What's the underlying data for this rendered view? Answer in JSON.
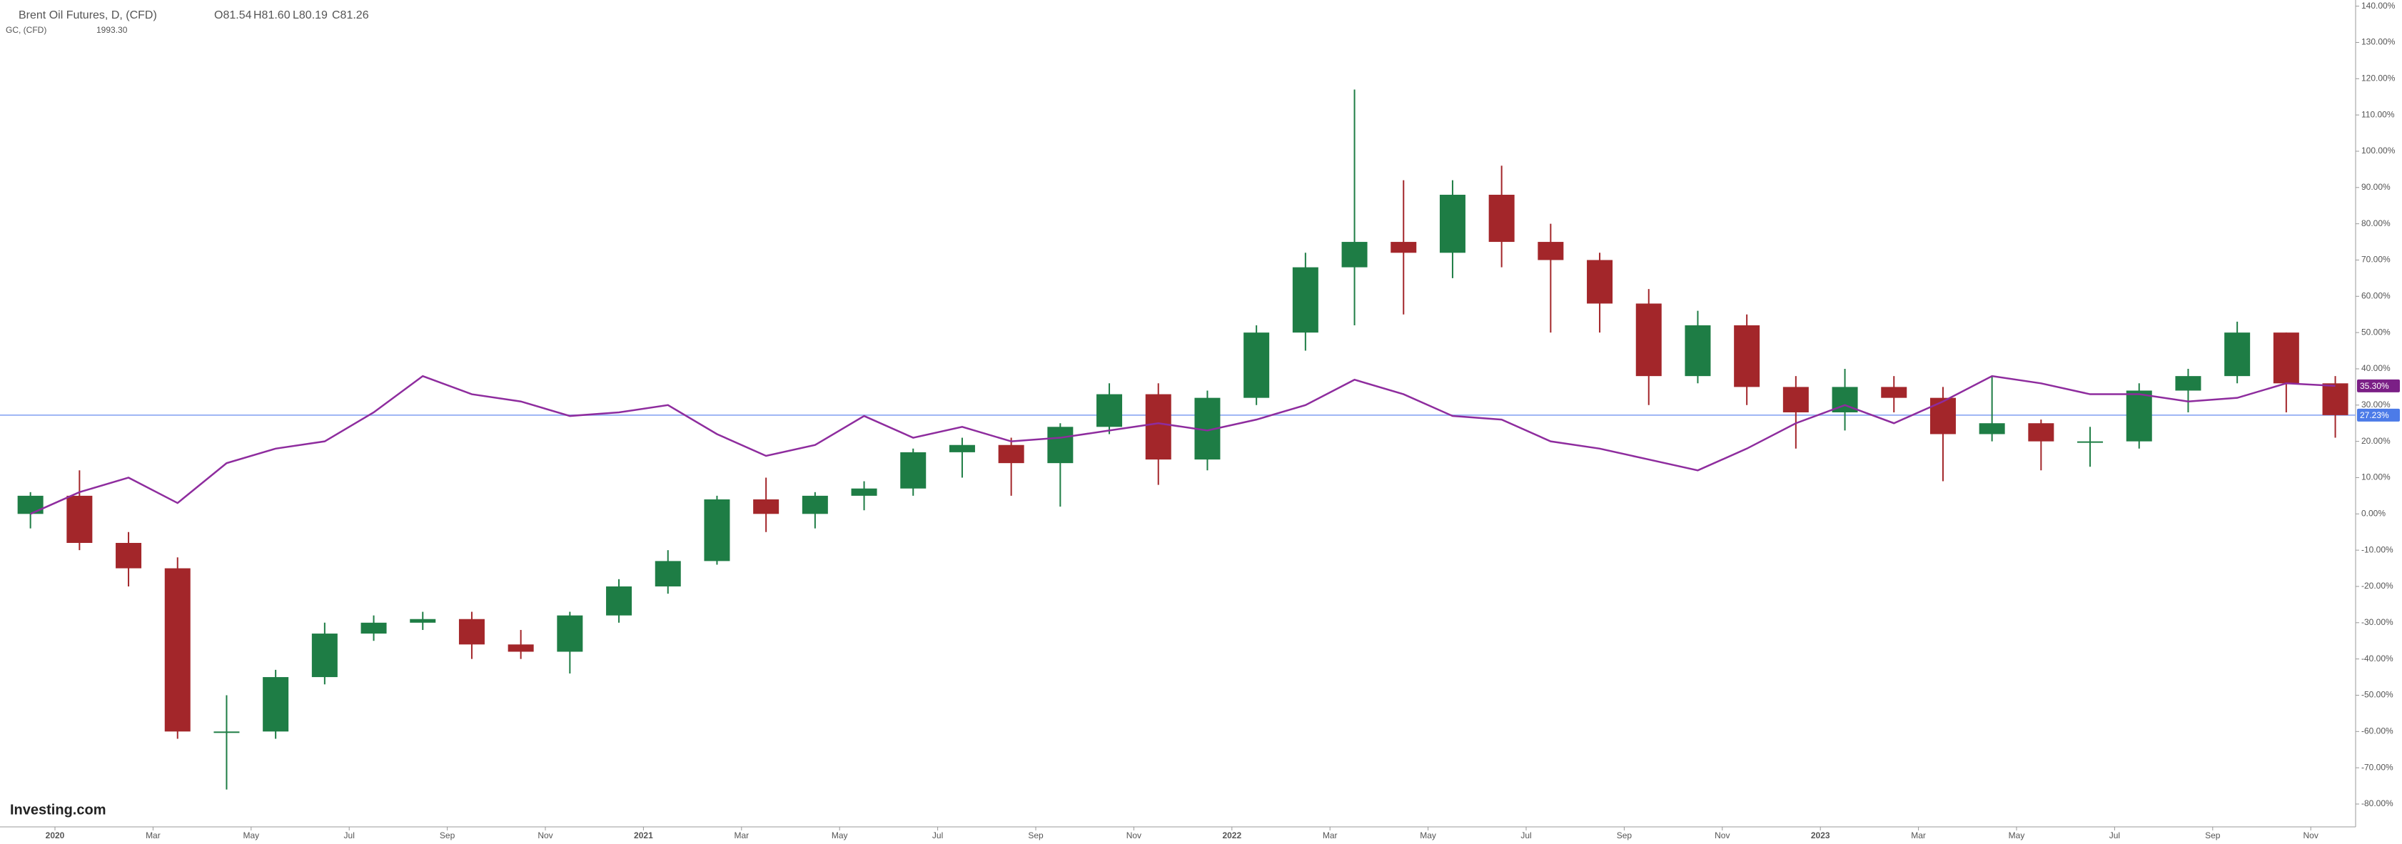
{
  "chart_data": {
    "type": "candlestick",
    "header": {
      "ohlc": [
        "O81.54",
        "H81.60",
        "L80.19",
        "C81.26"
      ],
      "second_value": "1993.30"
    },
    "logo": "Investing.com",
    "x": [
      "2019-12",
      "2020-01",
      "2020-02",
      "2020-03",
      "2020-04",
      "2020-05",
      "2020-06",
      "2020-07",
      "2020-08",
      "2020-09",
      "2020-10",
      "2020-11",
      "2020-12",
      "2021-01",
      "2021-02",
      "2021-03",
      "2021-04",
      "2021-05",
      "2021-06",
      "2021-07",
      "2021-08",
      "2021-09",
      "2021-10",
      "2021-11",
      "2021-12",
      "2022-01",
      "2022-02",
      "2022-03",
      "2022-04",
      "2022-05",
      "2022-06",
      "2022-07",
      "2022-08",
      "2022-09",
      "2022-10",
      "2022-11",
      "2022-12",
      "2023-01",
      "2023-02",
      "2023-03",
      "2023-04",
      "2023-05",
      "2023-06",
      "2023-07",
      "2023-08",
      "2023-09",
      "2023-10",
      "2023-11"
    ],
    "series": [
      {
        "name": "Brent Oil Futures, D, (CFD)",
        "kind": "candlestick",
        "up_color": "#1e7d45",
        "down_color": "#a3262a",
        "open": [
          0,
          5,
          -8,
          -15,
          -60,
          -60,
          -45,
          -33,
          -30,
          -29,
          -36,
          -38,
          -28,
          -20,
          -13,
          4,
          0,
          5,
          7,
          17,
          19,
          14,
          24,
          33,
          15,
          32,
          50,
          68,
          75,
          72,
          88,
          75,
          70,
          58,
          38,
          52,
          35,
          28,
          35,
          32,
          22,
          25,
          20,
          20,
          34,
          38,
          50,
          36
        ],
        "high": [
          6,
          12,
          -5,
          -12,
          -50,
          -43,
          -30,
          -28,
          -27,
          -27,
          -32,
          -27,
          -18,
          -10,
          5,
          10,
          6,
          9,
          18,
          21,
          21,
          25,
          36,
          36,
          34,
          52,
          72,
          117,
          92,
          92,
          96,
          80,
          72,
          62,
          56,
          55,
          38,
          40,
          38,
          35,
          38,
          26,
          24,
          36,
          40,
          53,
          50,
          38
        ],
        "low": [
          -4,
          -10,
          -20,
          -62,
          -76,
          -62,
          -47,
          -35,
          -32,
          -40,
          -40,
          -44,
          -30,
          -22,
          -14,
          -5,
          -4,
          1,
          5,
          10,
          5,
          2,
          22,
          8,
          12,
          30,
          45,
          52,
          55,
          65,
          68,
          50,
          50,
          30,
          36,
          30,
          18,
          23,
          28,
          9,
          20,
          12,
          13,
          18,
          28,
          36,
          28,
          21
        ],
        "close": [
          5,
          -8,
          -15,
          -60,
          -60,
          -45,
          -33,
          -30,
          -29,
          -36,
          -38,
          -28,
          -20,
          -13,
          4,
          0,
          5,
          7,
          17,
          19,
          14,
          24,
          33,
          15,
          32,
          50,
          68,
          75,
          72,
          88,
          75,
          70,
          58,
          38,
          52,
          35,
          28,
          35,
          32,
          22,
          25,
          20,
          20,
          34,
          38,
          50,
          36,
          27.23
        ]
      },
      {
        "name": "GC, (CFD)",
        "kind": "line",
        "color": "#8e2c9e",
        "values": [
          0,
          6,
          10,
          3,
          14,
          18,
          20,
          28,
          38,
          33,
          31,
          27,
          28,
          30,
          22,
          16,
          19,
          27,
          21,
          24,
          20,
          21,
          23,
          25,
          23,
          26,
          30,
          37,
          33,
          27,
          26,
          20,
          18,
          15,
          12,
          18,
          25,
          30,
          25,
          31,
          38,
          36,
          33,
          33,
          31,
          32,
          36,
          35.3
        ]
      }
    ],
    "badges": [
      {
        "value": 35.3,
        "label": "35.30%",
        "color": "#7b1f86"
      },
      {
        "value": 27.23,
        "label": "27.23%",
        "color": "#4c7be8"
      }
    ],
    "price_line": {
      "value": 27.23,
      "color": "#9db4f5"
    },
    "ylim": [
      -86.3,
      141.7
    ],
    "yticks": [
      {
        "value": 140,
        "label": "140.00%"
      },
      {
        "value": 130,
        "label": "130.00%"
      },
      {
        "value": 120,
        "label": "120.00%"
      },
      {
        "value": 110,
        "label": "110.00%"
      },
      {
        "value": 100,
        "label": "100.00%"
      },
      {
        "value": 90,
        "label": "90.00%"
      },
      {
        "value": 80,
        "label": "80.00%"
      },
      {
        "value": 70,
        "label": "70.00%"
      },
      {
        "value": 60,
        "label": "60.00%"
      },
      {
        "value": 50,
        "label": "50.00%"
      },
      {
        "value": 40,
        "label": "40.00%"
      },
      {
        "value": 30,
        "label": "30.00%"
      },
      {
        "value": 20,
        "label": "20.00%"
      },
      {
        "value": 10,
        "label": "10.00%"
      },
      {
        "value": 0,
        "label": "0.00%"
      },
      {
        "value": -10,
        "label": "-10.00%"
      },
      {
        "value": -20,
        "label": "-20.00%"
      },
      {
        "value": -30,
        "label": "-30.00%"
      },
      {
        "value": -40,
        "label": "-40.00%"
      },
      {
        "value": -50,
        "label": "-50.00%"
      },
      {
        "value": -60,
        "label": "-60.00%"
      },
      {
        "value": -70,
        "label": "-70.00%"
      },
      {
        "value": -80,
        "label": "-80.00%"
      }
    ],
    "xticks": [
      {
        "value": "2020-01",
        "label": "2020"
      },
      {
        "value": "2020-03",
        "label": "Mar"
      },
      {
        "value": "2020-05",
        "label": "May"
      },
      {
        "value": "2020-07",
        "label": "Jul"
      },
      {
        "value": "2020-09",
        "label": "Sep"
      },
      {
        "value": "2020-11",
        "label": "Nov"
      },
      {
        "value": "2021-01",
        "label": "2021"
      },
      {
        "value": "2021-03",
        "label": "Mar"
      },
      {
        "value": "2021-05",
        "label": "May"
      },
      {
        "value": "2021-07",
        "label": "Jul"
      },
      {
        "value": "2021-09",
        "label": "Sep"
      },
      {
        "value": "2021-11",
        "label": "Nov"
      },
      {
        "value": "2022-01",
        "label": "2022"
      },
      {
        "value": "2022-03",
        "label": "Mar"
      },
      {
        "value": "2022-05",
        "label": "May"
      },
      {
        "value": "2022-07",
        "label": "Jul"
      },
      {
        "value": "2022-09",
        "label": "Sep"
      },
      {
        "value": "2022-11",
        "label": "Nov"
      },
      {
        "value": "2023-01",
        "label": "2023"
      },
      {
        "value": "2023-03",
        "label": "Mar"
      },
      {
        "value": "2023-05",
        "label": "May"
      },
      {
        "value": "2023-07",
        "label": "Jul"
      },
      {
        "value": "2023-09",
        "label": "Sep"
      },
      {
        "value": "2023-11",
        "label": "Nov"
      }
    ],
    "grid": false
  }
}
